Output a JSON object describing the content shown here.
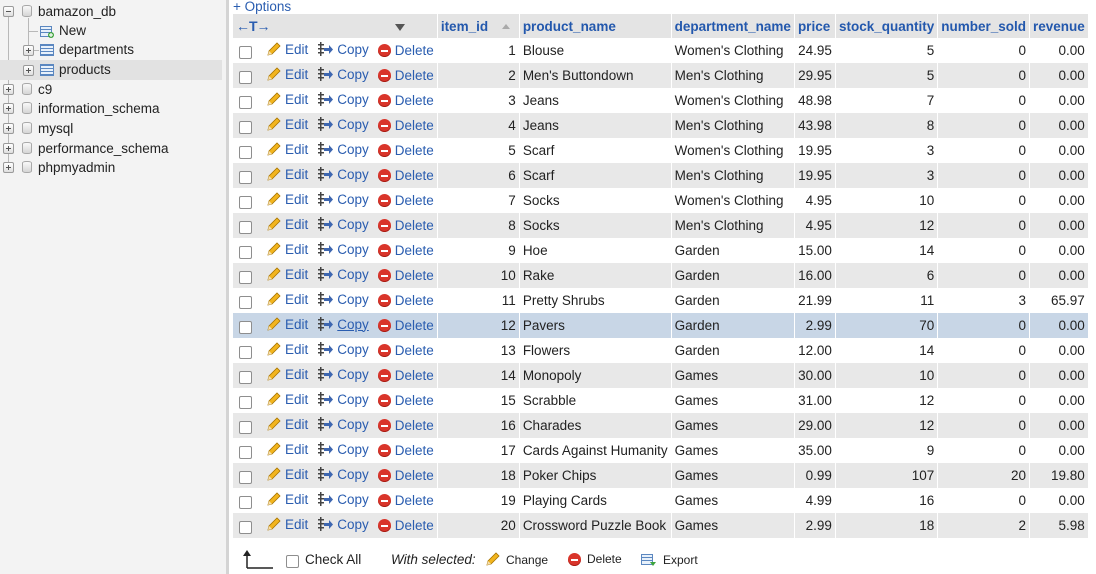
{
  "sidebar": {
    "databases": [
      {
        "name": "bamazon_db",
        "expanded": true
      },
      {
        "name": "c9",
        "expanded": false
      },
      {
        "name": "information_schema",
        "expanded": false
      },
      {
        "name": "mysql",
        "expanded": false
      },
      {
        "name": "performance_schema",
        "expanded": false
      },
      {
        "name": "phpmyadmin",
        "expanded": false
      }
    ],
    "new_label": "New",
    "tables": [
      "departments",
      "products"
    ],
    "selected_table": "products"
  },
  "main": {
    "options_link": "+ Options",
    "table_arrows": "←T→",
    "columns": [
      "item_id",
      "product_name",
      "department_name",
      "price",
      "stock_quantity",
      "number_sold",
      "revenue"
    ],
    "actions": {
      "edit": "Edit",
      "copy": "Copy",
      "delete": "Delete"
    },
    "rows": [
      {
        "item_id": "1",
        "product_name": "Blouse",
        "department_name": "Women's Clothing",
        "price": "24.95",
        "stock_quantity": "5",
        "number_sold": "0",
        "revenue": "0.00"
      },
      {
        "item_id": "2",
        "product_name": "Men's Buttondown",
        "department_name": "Men's Clothing",
        "price": "29.95",
        "stock_quantity": "5",
        "number_sold": "0",
        "revenue": "0.00"
      },
      {
        "item_id": "3",
        "product_name": "Jeans",
        "department_name": "Women's Clothing",
        "price": "48.98",
        "stock_quantity": "7",
        "number_sold": "0",
        "revenue": "0.00"
      },
      {
        "item_id": "4",
        "product_name": "Jeans",
        "department_name": "Men's Clothing",
        "price": "43.98",
        "stock_quantity": "8",
        "number_sold": "0",
        "revenue": "0.00"
      },
      {
        "item_id": "5",
        "product_name": "Scarf",
        "department_name": "Women's Clothing",
        "price": "19.95",
        "stock_quantity": "3",
        "number_sold": "0",
        "revenue": "0.00"
      },
      {
        "item_id": "6",
        "product_name": "Scarf",
        "department_name": "Men's Clothing",
        "price": "19.95",
        "stock_quantity": "3",
        "number_sold": "0",
        "revenue": "0.00"
      },
      {
        "item_id": "7",
        "product_name": "Socks",
        "department_name": "Women's Clothing",
        "price": "4.95",
        "stock_quantity": "10",
        "number_sold": "0",
        "revenue": "0.00"
      },
      {
        "item_id": "8",
        "product_name": "Socks",
        "department_name": "Men's Clothing",
        "price": "4.95",
        "stock_quantity": "12",
        "number_sold": "0",
        "revenue": "0.00"
      },
      {
        "item_id": "9",
        "product_name": "Hoe",
        "department_name": "Garden",
        "price": "15.00",
        "stock_quantity": "14",
        "number_sold": "0",
        "revenue": "0.00"
      },
      {
        "item_id": "10",
        "product_name": "Rake",
        "department_name": "Garden",
        "price": "16.00",
        "stock_quantity": "6",
        "number_sold": "0",
        "revenue": "0.00"
      },
      {
        "item_id": "11",
        "product_name": "Pretty Shrubs",
        "department_name": "Garden",
        "price": "21.99",
        "stock_quantity": "11",
        "number_sold": "3",
        "revenue": "65.97"
      },
      {
        "item_id": "12",
        "product_name": "Pavers",
        "department_name": "Garden",
        "price": "2.99",
        "stock_quantity": "70",
        "number_sold": "0",
        "revenue": "0.00"
      },
      {
        "item_id": "13",
        "product_name": "Flowers",
        "department_name": "Garden",
        "price": "12.00",
        "stock_quantity": "14",
        "number_sold": "0",
        "revenue": "0.00"
      },
      {
        "item_id": "14",
        "product_name": "Monopoly",
        "department_name": "Games",
        "price": "30.00",
        "stock_quantity": "10",
        "number_sold": "0",
        "revenue": "0.00"
      },
      {
        "item_id": "15",
        "product_name": "Scrabble",
        "department_name": "Games",
        "price": "31.00",
        "stock_quantity": "12",
        "number_sold": "0",
        "revenue": "0.00"
      },
      {
        "item_id": "16",
        "product_name": "Charades",
        "department_name": "Games",
        "price": "29.00",
        "stock_quantity": "12",
        "number_sold": "0",
        "revenue": "0.00"
      },
      {
        "item_id": "17",
        "product_name": "Cards Against Humanity",
        "department_name": "Games",
        "price": "35.00",
        "stock_quantity": "9",
        "number_sold": "0",
        "revenue": "0.00"
      },
      {
        "item_id": "18",
        "product_name": "Poker Chips",
        "department_name": "Games",
        "price": "0.99",
        "stock_quantity": "107",
        "number_sold": "20",
        "revenue": "19.80"
      },
      {
        "item_id": "19",
        "product_name": "Playing Cards",
        "department_name": "Games",
        "price": "4.99",
        "stock_quantity": "16",
        "number_sold": "0",
        "revenue": "0.00"
      },
      {
        "item_id": "20",
        "product_name": "Crossword Puzzle Book",
        "department_name": "Games",
        "price": "2.99",
        "stock_quantity": "18",
        "number_sold": "2",
        "revenue": "5.98"
      }
    ],
    "highlighted_item_id": "12"
  },
  "bottom_bar": {
    "check_all": "Check All",
    "with_selected": "With selected:",
    "change": "Change",
    "delete": "Delete",
    "export": "Export"
  },
  "colors": {
    "link": "#2a5db0",
    "header_bg": "#e4e4e4",
    "row_alt": "#e8e8e8",
    "row_highlight": "#c8d6e6",
    "delete_red": "#d9352b"
  }
}
